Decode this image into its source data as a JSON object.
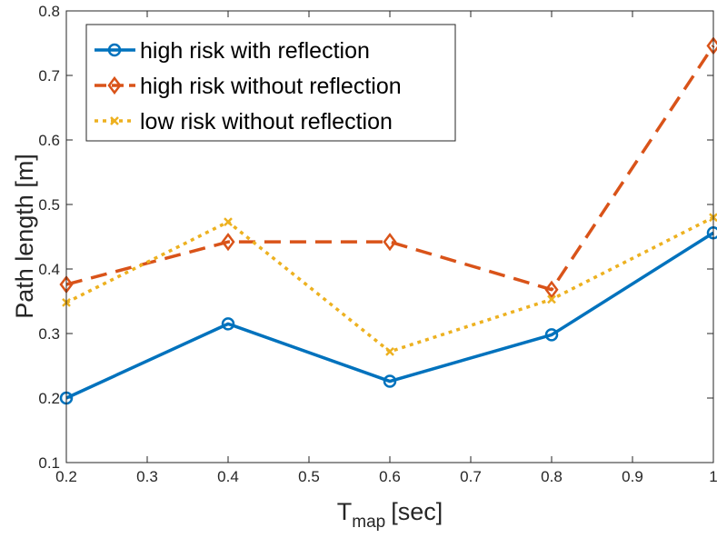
{
  "chart_data": {
    "type": "line",
    "title": "",
    "xlabel_main": "T",
    "xlabel_sub": "map",
    "xlabel_unit": "[sec]",
    "ylabel": "Path length [m]",
    "xlim": [
      0.2,
      1.0
    ],
    "ylim": [
      0.1,
      0.8
    ],
    "xticks": [
      0.2,
      0.3,
      0.4,
      0.5,
      0.6,
      0.7,
      0.8,
      0.9,
      1.0
    ],
    "xtick_labels": [
      "0.2",
      "0.3",
      "0.4",
      "0.5",
      "0.6",
      "0.7",
      "0.8",
      "0.9",
      "1"
    ],
    "yticks": [
      0.1,
      0.2,
      0.3,
      0.4,
      0.5,
      0.6,
      0.7,
      0.8
    ],
    "ytick_labels": [
      "0.1",
      "0.2",
      "0.3",
      "0.4",
      "0.5",
      "0.6",
      "0.7",
      "0.8"
    ],
    "x": [
      0.2,
      0.4,
      0.6,
      0.8,
      1.0
    ],
    "grid": false,
    "legend_position": "top-left",
    "series": [
      {
        "name": "high risk with reflection",
        "values": [
          0.2,
          0.315,
          0.226,
          0.298,
          0.456
        ],
        "color": "#0072BD",
        "line_style": "solid",
        "marker": "circle"
      },
      {
        "name": "high risk without reflection",
        "values": [
          0.376,
          0.442,
          0.442,
          0.368,
          0.746
        ],
        "color": "#D95319",
        "line_style": "dashed",
        "marker": "diamond"
      },
      {
        "name": "low risk without reflection",
        "values": [
          0.348,
          0.473,
          0.272,
          0.353,
          0.48
        ],
        "color": "#EDB120",
        "line_style": "dotted",
        "marker": "x"
      }
    ]
  }
}
